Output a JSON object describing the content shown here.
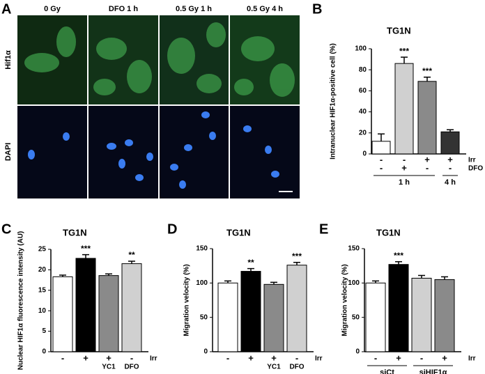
{
  "panel_labels": [
    "A",
    "B",
    "C",
    "D",
    "E"
  ],
  "micrographs": {
    "columns": [
      "0 Gy",
      "DFO 1 h",
      "0.5 Gy 1 h",
      "0.5 Gy 4 h"
    ],
    "rows": [
      "Hif1α",
      "DAPI"
    ]
  },
  "chart_data": [
    {
      "type": "bar",
      "title": "TG1N",
      "y_label": "Intranuclear HIF1α-positive cell (%)",
      "values": [
        12,
        86,
        69,
        21
      ],
      "errors": [
        7,
        6,
        4,
        2
      ],
      "colors": [
        "#ffffff",
        "#d0d0d0",
        "#8a8a8a",
        "#333333"
      ],
      "significance": [
        null,
        "***",
        "***",
        null
      ],
      "ylim": [
        0,
        100
      ],
      "yticks": [
        0,
        20,
        40,
        60,
        80,
        100
      ],
      "conditions": [
        {
          "name": "Irr",
          "marks": [
            "-",
            "-",
            "+",
            "+"
          ]
        },
        {
          "name": "DFO",
          "marks": [
            "-",
            "+",
            "-",
            "-"
          ]
        }
      ],
      "groups": [
        {
          "label": "1 h",
          "size": 3
        },
        {
          "label": "4 h",
          "size": 1
        }
      ]
    },
    {
      "type": "bar",
      "title": "TG1N",
      "y_label": "Nuclear HIF1α fluorescence intensity (AU)",
      "values": [
        18.3,
        22.8,
        18.6,
        21.5
      ],
      "errors": [
        0.4,
        0.9,
        0.4,
        0.6
      ],
      "colors": [
        "#ffffff",
        "#000000",
        "#8a8a8a",
        "#d0d0d0"
      ],
      "significance": [
        null,
        "***",
        null,
        "**"
      ],
      "ylim": [
        0,
        25
      ],
      "yticks": [
        0,
        5,
        10,
        15,
        20,
        25
      ],
      "conditions": [
        {
          "name": "Irr",
          "marks": [
            "-",
            "+",
            "+",
            "-"
          ]
        }
      ],
      "categories": [
        null,
        null,
        "YC1",
        "DFO"
      ]
    },
    {
      "type": "bar",
      "title": "TG1N",
      "y_label": "Migration velocity (%)",
      "values": [
        100,
        117,
        98,
        126
      ],
      "errors": [
        3,
        4,
        3,
        4
      ],
      "colors": [
        "#ffffff",
        "#000000",
        "#8a8a8a",
        "#d0d0d0"
      ],
      "significance": [
        null,
        "**",
        null,
        "***"
      ],
      "ylim": [
        0,
        150
      ],
      "yticks": [
        0,
        50,
        100,
        150
      ],
      "conditions": [
        {
          "name": "Irr",
          "marks": [
            "-",
            "+",
            "+",
            "-"
          ]
        }
      ],
      "categories": [
        null,
        null,
        "YC1",
        "DFO"
      ]
    },
    {
      "type": "bar",
      "title": "TG1N",
      "y_label": "Migration velocity (%)",
      "values": [
        100,
        127,
        107,
        105
      ],
      "errors": [
        3,
        4,
        4,
        4
      ],
      "colors": [
        "#ffffff",
        "#000000",
        "#d0d0d0",
        "#8a8a8a"
      ],
      "significance": [
        null,
        "***",
        null,
        null
      ],
      "ylim": [
        0,
        150
      ],
      "yticks": [
        0,
        50,
        100,
        150
      ],
      "conditions": [
        {
          "name": "Irr",
          "marks": [
            "-",
            "+",
            "-",
            "+"
          ]
        }
      ],
      "groups": [
        {
          "label": "siCt",
          "size": 2
        },
        {
          "label": "siHIF1α",
          "size": 2
        }
      ]
    }
  ]
}
